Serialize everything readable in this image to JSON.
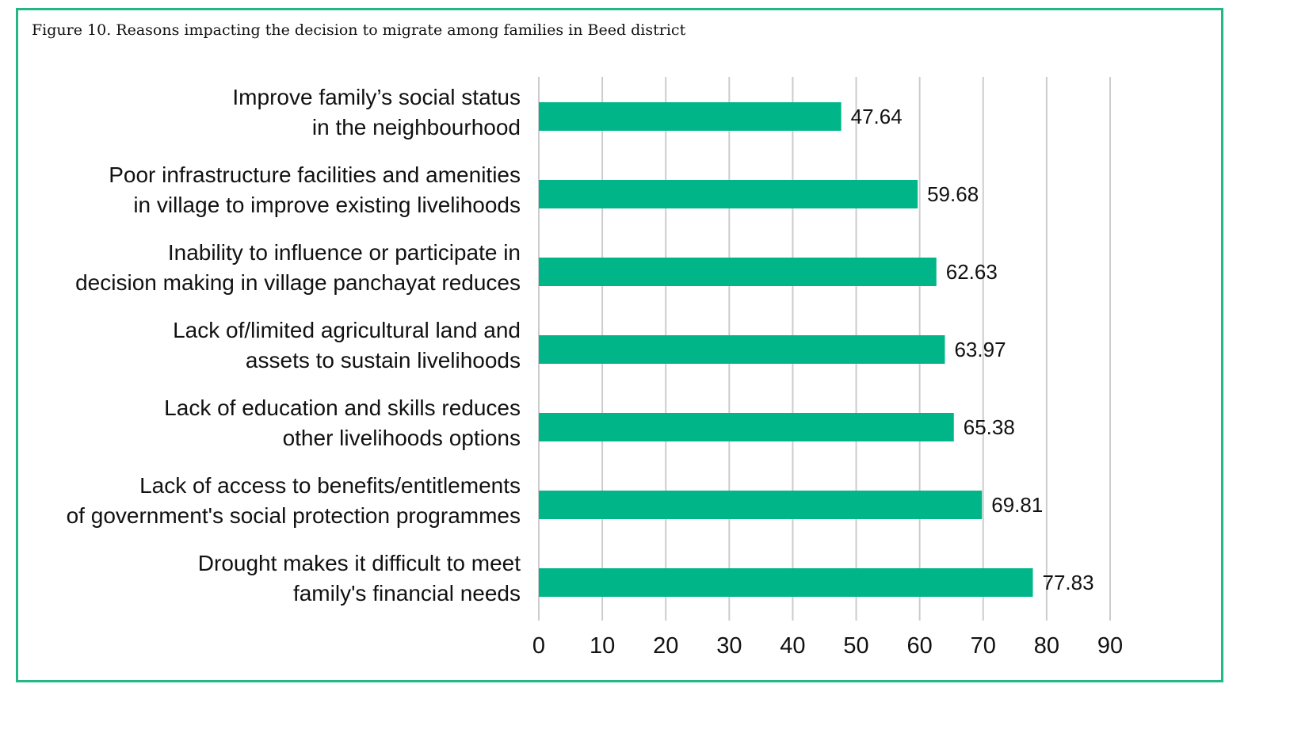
{
  "figure": {
    "caption": "Figure 10. Reasons impacting the decision to migrate among families in Beed district"
  },
  "chart_data": {
    "type": "bar",
    "orientation": "horizontal",
    "categories": [
      [
        "Improve family’s social status",
        "in the neighbourhood"
      ],
      [
        "Poor infrastructure facilities and amenities",
        "in village to improve existing livelihoods"
      ],
      [
        "Inability to influence or participate in",
        "decision making in village panchayat reduces"
      ],
      [
        "Lack of/limited agricultural land and",
        "assets to sustain livelihoods"
      ],
      [
        "Lack of education and skills reduces",
        "other livelihoods options"
      ],
      [
        "Lack of access to benefits/entitlements",
        "of government's social protection programmes"
      ],
      [
        "Drought makes it difficult to meet",
        "family's financial needs"
      ]
    ],
    "values": [
      47.64,
      59.68,
      62.63,
      63.97,
      65.38,
      69.81,
      77.83
    ],
    "data_labels": [
      "47.64",
      "59.68",
      "62.63",
      "63.97",
      "65.38",
      "69.81",
      "77.83"
    ],
    "xlim": [
      0,
      90
    ],
    "xticks": [
      0,
      10,
      20,
      30,
      40,
      50,
      60,
      70,
      80,
      90
    ],
    "grid": "vertical",
    "legend": "none",
    "colors": {
      "bar": "#00b587",
      "grid": "#cccccc",
      "frame": "#22b785"
    }
  }
}
